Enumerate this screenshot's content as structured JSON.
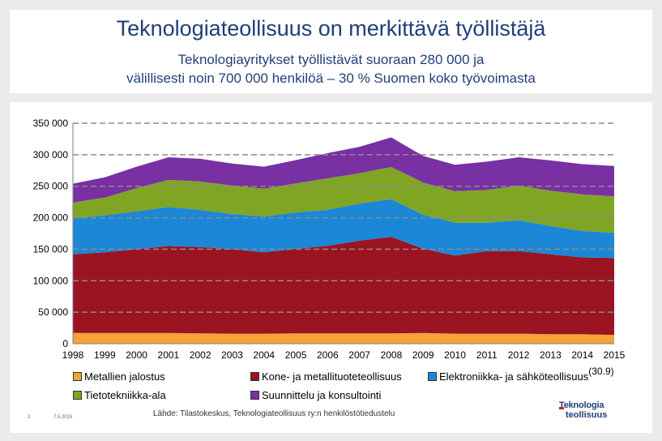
{
  "header": {
    "title": "Teknologiateollisuus on merkittävä työllistäjä",
    "subtitle_line1": "Teknologiayritykset työllistävät suoraan 280 000 ja",
    "subtitle_line2": "välillisesti noin 700 000 henkilöä – 30 % Suomen koko työvoimasta"
  },
  "chart_data": {
    "type": "area",
    "stacked": true,
    "title": "",
    "xlabel": "",
    "ylabel": "",
    "ylim": [
      0,
      350000
    ],
    "y_ticks": [
      "0",
      "50 000",
      "100 000",
      "150 000",
      "200 000",
      "250 000",
      "300 000",
      "350 000"
    ],
    "y_tick_values": [
      0,
      50000,
      100000,
      150000,
      200000,
      250000,
      300000,
      350000
    ],
    "x": [
      "1998",
      "1999",
      "2000",
      "2001",
      "2002",
      "2003",
      "2004",
      "2005",
      "2006",
      "2007",
      "2008",
      "2009",
      "2010",
      "2011",
      "2012",
      "2013",
      "2014",
      "2015"
    ],
    "grid": "dashed horizontal",
    "series": [
      {
        "name": "Metallien jalostus",
        "color": "#f4a23a",
        "values": [
          17000,
          17000,
          17000,
          17000,
          16500,
          16000,
          16000,
          16500,
          16500,
          16500,
          16500,
          17000,
          16000,
          16000,
          16000,
          15000,
          15000,
          14000
        ]
      },
      {
        "name": "Kone- ja metallituoteteollisuus",
        "color": "#9b1421",
        "values": [
          125000,
          128000,
          133000,
          138000,
          137000,
          134000,
          129000,
          134000,
          139000,
          147000,
          153000,
          134000,
          124000,
          131000,
          131000,
          127000,
          122000,
          122000
        ]
      },
      {
        "name": "Elektroniikka- ja sähköteollisuus",
        "color": "#1b87d6",
        "values": [
          57000,
          59000,
          60000,
          62000,
          59000,
          56000,
          57000,
          58000,
          57000,
          59000,
          60000,
          54000,
          52000,
          45000,
          49000,
          45000,
          42000,
          40000
        ]
      },
      {
        "name": "Tietotekniikka-ala",
        "color": "#80a523",
        "values": [
          25000,
          28000,
          37000,
          43000,
          45000,
          45000,
          44000,
          46000,
          50000,
          48000,
          51000,
          51000,
          50000,
          52000,
          55000,
          56000,
          58000,
          58000
        ]
      },
      {
        "name": "Suunnittelu ja konsultointi",
        "color": "#7830a3",
        "values": [
          30000,
          32000,
          34000,
          36000,
          36000,
          35000,
          35000,
          37000,
          40000,
          42000,
          47000,
          42000,
          42000,
          45000,
          45000,
          48000,
          48000,
          48000
        ]
      }
    ]
  },
  "legend": {
    "items": [
      {
        "label": "Metallien jalostus",
        "color": "#f4a23a"
      },
      {
        "label": "Kone- ja metallituoteteollisuus",
        "color": "#9b1421"
      },
      {
        "label": "Elektroniikka- ja sähköteollisuus",
        "color": "#1b87d6"
      },
      {
        "label": "Tietotekniikka-ala",
        "color": "#80a523"
      },
      {
        "label": "Suunnittelu ja konsultointi",
        "color": "#7830a3"
      }
    ],
    "version_note": "(30.9)"
  },
  "footer": {
    "page_number": "2",
    "date": "7.5.2015",
    "source": "Lähde: Tilastokeskus, Teknologiateollisuus ry:n henkilöstötiedustelu",
    "logo_line1": "Teknologia",
    "logo_line2": "teollisuus"
  }
}
